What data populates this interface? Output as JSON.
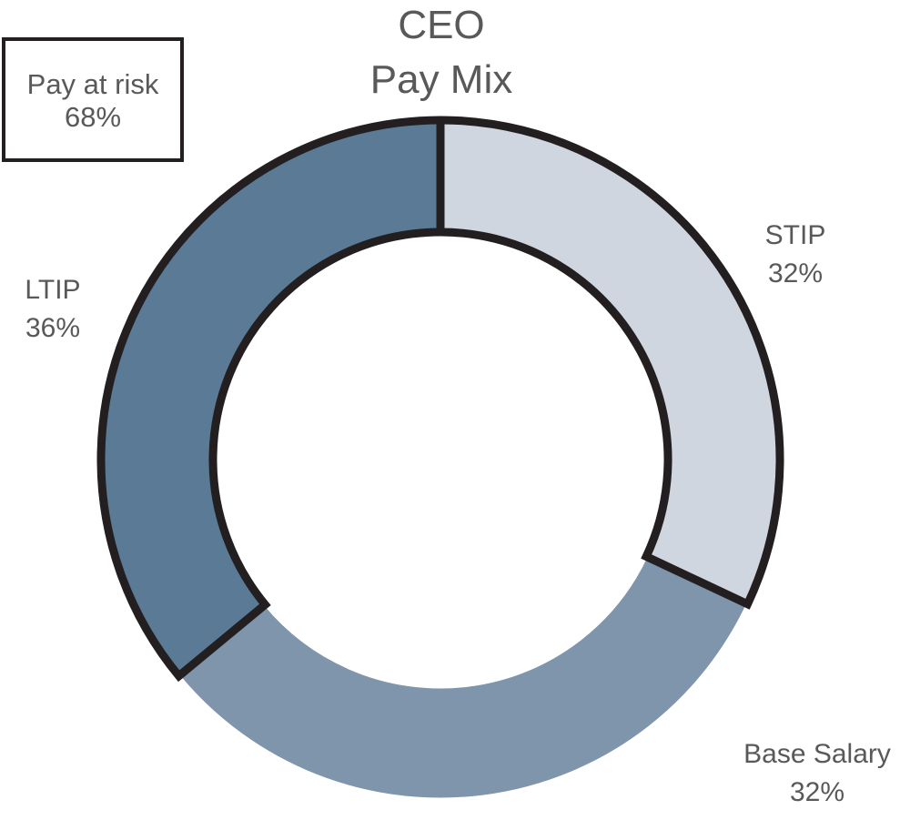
{
  "chart_data": {
    "type": "pie",
    "variant": "donut",
    "title": [
      "CEO",
      "Pay Mix"
    ],
    "callout": {
      "line1": "Pay at risk",
      "line2": "68%"
    },
    "slices": [
      {
        "name": "STIP",
        "label": "32%",
        "value": 32,
        "color": "#cfd6df",
        "outlined": true
      },
      {
        "name": "Base Salary",
        "label": "32%",
        "value": 32,
        "color": "#7f95ab",
        "outlined": false
      },
      {
        "name": "LTIP",
        "label": "36%",
        "value": 36,
        "color": "#5a7a95",
        "outlined": true
      }
    ],
    "outline_color": "#231f20",
    "separator_color": "#ffffff"
  }
}
